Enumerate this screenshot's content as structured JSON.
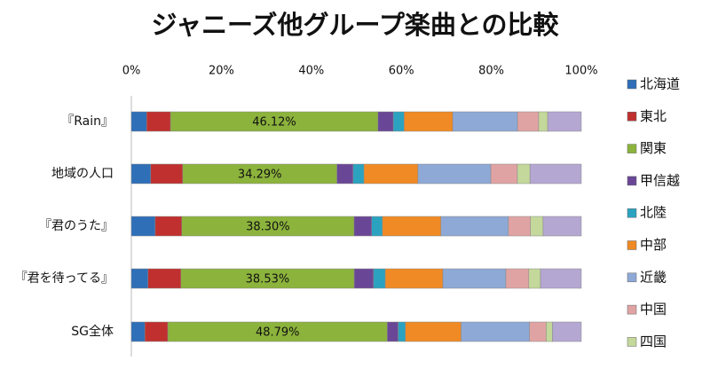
{
  "chart_data": {
    "type": "stacked-bar-horizontal",
    "title": "ジャニーズ他グループ楽曲との比較",
    "categories": [
      "『Rain』",
      "地域の人口",
      "『君のうた』",
      "『君を待ってる』",
      "SG全体"
    ],
    "series": [
      {
        "name": "北海道",
        "color": "#2e6fb8",
        "values": [
          3.4,
          4.3,
          5.3,
          3.7,
          3.0
        ]
      },
      {
        "name": "東北",
        "color": "#c0302f",
        "values": [
          5.3,
          7.1,
          5.9,
          7.3,
          5.1
        ]
      },
      {
        "name": "関東",
        "color": "#8cb33c",
        "values": [
          46.12,
          34.29,
          38.3,
          38.53,
          48.79
        ],
        "value_labels": [
          "46.12%",
          "34.29%",
          "38.30%",
          "38.53%",
          "48.79%"
        ]
      },
      {
        "name": "甲信越",
        "color": "#6a4796",
        "values": [
          3.4,
          3.6,
          3.9,
          4.3,
          2.4
        ]
      },
      {
        "name": "北陸",
        "color": "#2ba3c0",
        "values": [
          2.4,
          2.4,
          2.4,
          2.6,
          1.6
        ]
      },
      {
        "name": "中部",
        "color": "#f08a24",
        "values": [
          10.8,
          12.0,
          13.0,
          12.8,
          12.4
        ]
      },
      {
        "name": "近畿",
        "color": "#8ea9d6",
        "values": [
          14.4,
          16.2,
          15.0,
          14.0,
          15.2
        ]
      },
      {
        "name": "中国",
        "color": "#e0a3a3",
        "values": [
          4.7,
          5.9,
          4.9,
          5.1,
          3.7
        ]
      },
      {
        "name": "四国",
        "color": "#c3d89a",
        "values": [
          2.0,
          2.8,
          2.8,
          2.6,
          1.4
        ]
      },
      {
        "color": "#b4a7d2",
        "values": [
          7.48,
          11.41,
          8.5,
          9.07,
          6.41
        ]
      }
    ],
    "xlim": [
      0,
      100
    ],
    "xticks": [
      {
        "value": 0,
        "label": "0%"
      },
      {
        "value": 20,
        "label": "20%"
      },
      {
        "value": 40,
        "label": "40%"
      },
      {
        "value": 60,
        "label": "60%"
      },
      {
        "value": 80,
        "label": "80%"
      },
      {
        "value": 100,
        "label": "100%"
      }
    ],
    "grid": false
  }
}
